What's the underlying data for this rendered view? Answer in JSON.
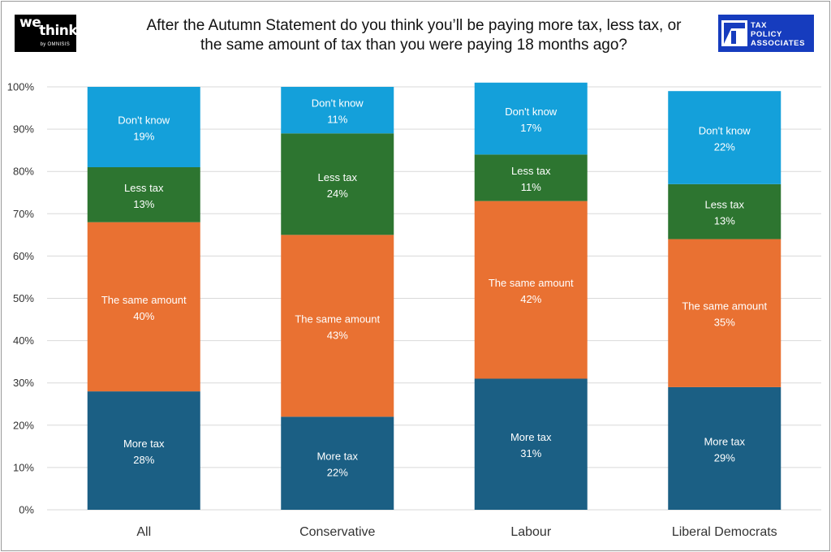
{
  "title_line1": "After the Autumn Statement do you think you’ll be paying more tax, less tax, or",
  "title_line2": "the same amount of tax than you were paying 18 months ago?",
  "logo_left": {
    "line1a": "we",
    "line1b": "think",
    "tagline": "by OMNISIS"
  },
  "logo_right": {
    "line1": "TAX",
    "line2": "POLICY",
    "line3": "ASSOCIATES",
    "color": "#163cbe"
  },
  "chart_data": {
    "type": "bar",
    "stacked": true,
    "categories": [
      "All",
      "Conservative",
      "Labour",
      "Liberal Democrats"
    ],
    "ylim": [
      0,
      100
    ],
    "yticks": [
      "0%",
      "10%",
      "20%",
      "30%",
      "40%",
      "50%",
      "60%",
      "70%",
      "80%",
      "90%",
      "100%"
    ],
    "grid": true,
    "series": [
      {
        "name": "More tax",
        "values": [
          28,
          22,
          31,
          29
        ],
        "labels": [
          "28%",
          "22%",
          "31%",
          "29%"
        ],
        "color": "#1b5f84"
      },
      {
        "name": "The same amount",
        "values": [
          40,
          43,
          42,
          35
        ],
        "labels": [
          "40%",
          "43%",
          "42%",
          "35%"
        ],
        "color": "#e97132"
      },
      {
        "name": "Less tax",
        "values": [
          13,
          24,
          11,
          13
        ],
        "labels": [
          "13%",
          "24%",
          "11%",
          "13%"
        ],
        "color": "#2d7530"
      },
      {
        "name": "Don't know",
        "values": [
          19,
          11,
          17,
          22
        ],
        "labels": [
          "19%",
          "11%",
          "17%",
          "22%"
        ],
        "color": "#14a0da"
      }
    ]
  }
}
